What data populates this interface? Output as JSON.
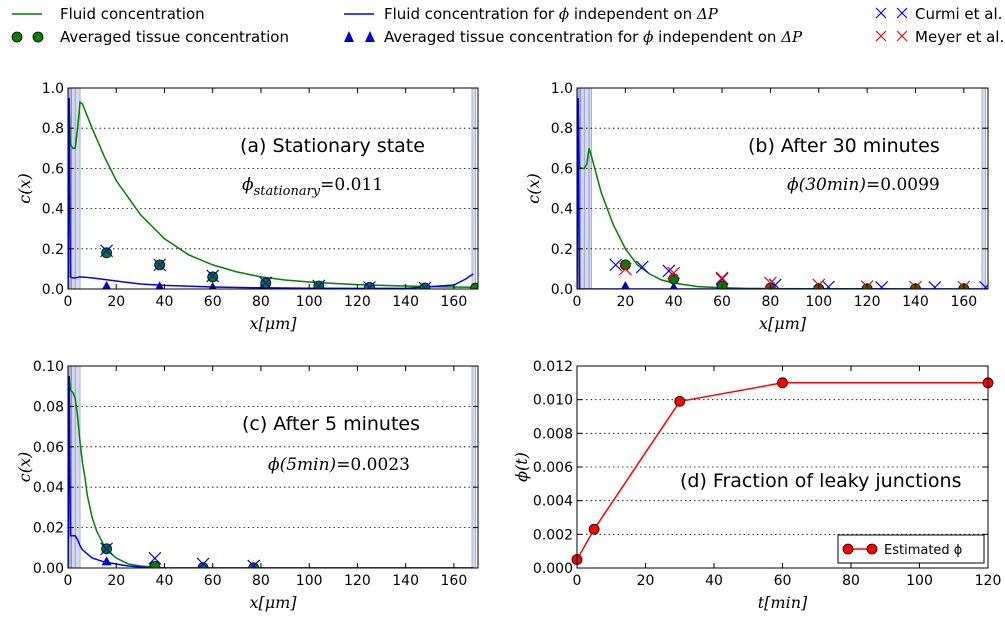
{
  "legend": {
    "fluid": "Fluid concentration",
    "tissue": "Averaged tissue concentration",
    "fluid_phi_prefix": "Fluid concentration for",
    "fluid_phi_suffix": "independent on",
    "tissue_phi_prefix": "Averaged tissue concentration for",
    "tissue_phi_suffix": "independent on",
    "phi_symbol": "ϕ",
    "delta_p": "ΔP",
    "curmi": "Curmi et al.",
    "meyer": "Meyer et al.",
    "colors": {
      "fluid": "#008000",
      "fluid_phi": "#0000ff",
      "curmi": "#0000ff",
      "meyer": "#ff0000",
      "tissue": "#008000",
      "tissue_phi": "#0000cc"
    }
  },
  "chart_data": [
    {
      "type": "line",
      "id": "a",
      "annotation": "(a) Stationary state",
      "phi_label": "ϕ",
      "phi_subscript": "stationary",
      "phi_value": "=0.011",
      "xlabel": "x[μm]",
      "ylabel": "c(x)",
      "xlim": [
        0,
        170
      ],
      "ylim": [
        0,
        1.0
      ],
      "xticks": [
        0,
        20,
        40,
        60,
        80,
        100,
        120,
        140,
        160
      ],
      "yticks": [
        0.0,
        0.2,
        0.4,
        0.6,
        0.8,
        1.0
      ],
      "ytick_labels": [
        "0.0",
        "0.2",
        "0.4",
        "0.6",
        "0.8",
        "1.0"
      ],
      "ygrid": [
        0.2,
        0.4,
        0.6,
        0.8
      ],
      "bands": [
        [
          0,
          1.5
        ],
        [
          1.5,
          3
        ],
        [
          3,
          5
        ],
        [
          167.5,
          169
        ]
      ],
      "fluid": {
        "x": [
          0,
          0.5,
          1,
          2,
          3,
          4,
          5,
          6,
          10,
          15,
          20,
          30,
          40,
          50,
          60,
          70,
          80,
          90,
          100,
          110,
          120,
          130,
          140,
          150,
          160,
          168
        ],
        "y": [
          0.0,
          0.9,
          0.72,
          0.7,
          0.7,
          0.8,
          0.93,
          0.92,
          0.8,
          0.66,
          0.54,
          0.37,
          0.25,
          0.17,
          0.12,
          0.085,
          0.06,
          0.045,
          0.035,
          0.028,
          0.022,
          0.018,
          0.015,
          0.012,
          0.01,
          0.009
        ]
      },
      "fluid_phi": {
        "x": [
          0,
          0.5,
          1,
          2,
          3,
          5,
          10,
          20,
          30,
          40,
          60,
          80,
          100,
          120,
          140,
          160,
          165,
          168
        ],
        "y": [
          0.0,
          0.95,
          0.06,
          0.055,
          0.055,
          0.06,
          0.055,
          0.04,
          0.025,
          0.018,
          0.01,
          0.006,
          0.004,
          0.003,
          0.003,
          0.02,
          0.05,
          0.075
        ]
      },
      "tissue": {
        "x": [
          16,
          38,
          60,
          82,
          104,
          125,
          148,
          169
        ],
        "y": [
          0.18,
          0.12,
          0.06,
          0.03,
          0.015,
          0.008,
          0.005,
          0.004
        ]
      },
      "tissue_phi": {
        "x": [
          16,
          38,
          60,
          82,
          104,
          125,
          148,
          169
        ],
        "y": [
          0.01,
          0.008,
          0.005,
          0.003,
          0.002,
          0.002,
          0.002,
          0.002
        ]
      },
      "curmi": {
        "x": [
          16,
          38,
          60,
          82,
          104,
          125,
          148
        ],
        "y": [
          0.19,
          0.12,
          0.065,
          0.03,
          0.015,
          0.008,
          0.005
        ]
      },
      "meyer": {
        "x": [],
        "y": []
      }
    },
    {
      "type": "line",
      "id": "b",
      "annotation": "(b) After 30 minutes",
      "phi_label": "ϕ(30min)",
      "phi_subscript": "",
      "phi_value": "=0.0099",
      "xlabel": "x[μm]",
      "ylabel": "c(x)",
      "xlim": [
        0,
        170
      ],
      "ylim": [
        0,
        1.0
      ],
      "xticks": [
        0,
        20,
        40,
        60,
        80,
        100,
        120,
        140,
        160
      ],
      "yticks": [
        0.0,
        0.2,
        0.4,
        0.6,
        0.8,
        1.0
      ],
      "ytick_labels": [
        "0.0",
        "0.2",
        "0.4",
        "0.6",
        "0.8",
        "1.0"
      ],
      "ygrid": [
        0.2,
        0.4,
        0.6,
        0.8
      ],
      "bands": [
        [
          0,
          1.5
        ],
        [
          1.5,
          3
        ],
        [
          3,
          5
        ],
        [
          5,
          6
        ],
        [
          167.5,
          169
        ]
      ],
      "fluid": {
        "x": [
          0,
          0.5,
          1,
          2,
          3,
          4,
          5,
          6,
          10,
          15,
          20,
          25,
          30,
          35,
          40,
          50,
          60,
          70,
          80,
          100,
          120,
          140,
          160,
          168
        ],
        "y": [
          0.0,
          0.9,
          0.61,
          0.6,
          0.6,
          0.62,
          0.7,
          0.66,
          0.48,
          0.32,
          0.2,
          0.12,
          0.075,
          0.045,
          0.03,
          0.012,
          0.006,
          0.003,
          0.002,
          0.001,
          0.001,
          0.0,
          0.0,
          0.0
        ]
      },
      "fluid_phi": {
        "x": [
          0,
          0.5,
          1,
          2,
          3,
          5,
          10,
          20,
          30,
          40,
          60,
          80,
          100,
          168
        ],
        "y": [
          0.0,
          0.95,
          0.0,
          0.0,
          0.0,
          0.0,
          0.0,
          0.0,
          0.0,
          0.0,
          0.0,
          0.0,
          0.0,
          0.0
        ]
      },
      "tissue": {
        "x": [
          20,
          40,
          60,
          80,
          100,
          120,
          140,
          160
        ],
        "y": [
          0.12,
          0.05,
          0.015,
          0.004,
          0.002,
          0.001,
          0.001,
          0.001
        ]
      },
      "tissue_phi": {
        "x": [
          20,
          40,
          60,
          80,
          100,
          120,
          140,
          160
        ],
        "y": [
          0.01,
          0.005,
          0.002,
          0.001,
          0.001,
          0.001,
          0.001,
          0.001
        ]
      },
      "curmi": {
        "x": [
          16,
          27,
          38,
          60,
          82,
          104,
          126,
          148,
          169
        ],
        "y": [
          0.12,
          0.11,
          0.09,
          0.05,
          0.02,
          0.01,
          0.008,
          0.008,
          0.008
        ]
      },
      "meyer": {
        "x": [
          20,
          40,
          60,
          80,
          100,
          120,
          140,
          160
        ],
        "y": [
          0.1,
          0.08,
          0.055,
          0.03,
          0.02,
          0.012,
          0.01,
          0.01
        ]
      }
    },
    {
      "type": "line",
      "id": "c",
      "annotation": "(c) After 5 minutes",
      "phi_label": "ϕ(5min)",
      "phi_subscript": "",
      "phi_value": "=0.0023",
      "xlabel": "x[μm]",
      "ylabel": "c(x)",
      "xlim": [
        0,
        170
      ],
      "ylim": [
        0,
        0.1
      ],
      "xticks": [
        0,
        20,
        40,
        60,
        80,
        100,
        120,
        140,
        160
      ],
      "yticks": [
        0.0,
        0.02,
        0.04,
        0.06,
        0.08,
        0.1
      ],
      "ytick_labels": [
        "0.00",
        "0.02",
        "0.04",
        "0.06",
        "0.08",
        "0.10"
      ],
      "ygrid": [
        0.02,
        0.04,
        0.06,
        0.08
      ],
      "bands": [
        [
          0,
          1.5
        ],
        [
          1.5,
          3
        ],
        [
          3,
          5
        ],
        [
          167.5,
          169
        ]
      ],
      "fluid": {
        "x": [
          0,
          0.5,
          1,
          2,
          3,
          4,
          5,
          6,
          7,
          8,
          10,
          12,
          15,
          18,
          20,
          25,
          30,
          35,
          40,
          60,
          80,
          100,
          168
        ],
        "y": [
          0.0,
          0.095,
          0.088,
          0.087,
          0.084,
          0.075,
          0.062,
          0.052,
          0.045,
          0.036,
          0.025,
          0.018,
          0.011,
          0.007,
          0.005,
          0.002,
          0.001,
          0.0005,
          0.0,
          0.0,
          0.0,
          0.0,
          0.0
        ]
      },
      "fluid_phi": {
        "x": [
          0,
          0.5,
          1,
          2,
          3,
          4,
          5,
          6,
          8,
          10,
          15,
          20,
          25,
          30,
          35,
          40,
          168
        ],
        "y": [
          0.0,
          0.095,
          0.016,
          0.016,
          0.016,
          0.014,
          0.011,
          0.009,
          0.007,
          0.005,
          0.003,
          0.002,
          0.001,
          0.0005,
          0.0,
          0.0,
          0.0
        ]
      },
      "tissue": {
        "x": [
          16,
          36,
          56,
          77
        ],
        "y": [
          0.0095,
          0.0008,
          0.0002,
          0.0001
        ]
      },
      "tissue_phi": {
        "x": [
          16,
          36,
          56,
          77
        ],
        "y": [
          0.0028,
          0.0002,
          0.0001,
          0.0
        ]
      },
      "curmi": {
        "x": [
          16,
          36,
          56,
          77
        ],
        "y": [
          0.0095,
          0.0048,
          0.002,
          0.001
        ]
      },
      "meyer": {
        "x": [],
        "y": []
      }
    },
    {
      "type": "line",
      "id": "d",
      "annotation": "(d) Fraction of leaky junctions",
      "xlabel": "t[min]",
      "ylabel": "ϕ(t)",
      "xlim": [
        0,
        120
      ],
      "ylim": [
        0,
        0.012
      ],
      "xticks": [
        0,
        20,
        40,
        60,
        80,
        100,
        120
      ],
      "yticks": [
        0.0,
        0.002,
        0.004,
        0.006,
        0.008,
        0.01,
        0.012
      ],
      "ytick_labels": [
        "0.000",
        "0.002",
        "0.004",
        "0.006",
        "0.008",
        "0.010",
        "0.012"
      ],
      "ygrid": [
        0.002,
        0.004,
        0.006,
        0.008,
        0.01
      ],
      "series": [
        {
          "name": "Estimated ϕ",
          "x": [
            0,
            5,
            30,
            60,
            120
          ],
          "y": [
            0.0005,
            0.0023,
            0.0099,
            0.011,
            0.011
          ],
          "color": "#ff0000"
        }
      ]
    }
  ]
}
